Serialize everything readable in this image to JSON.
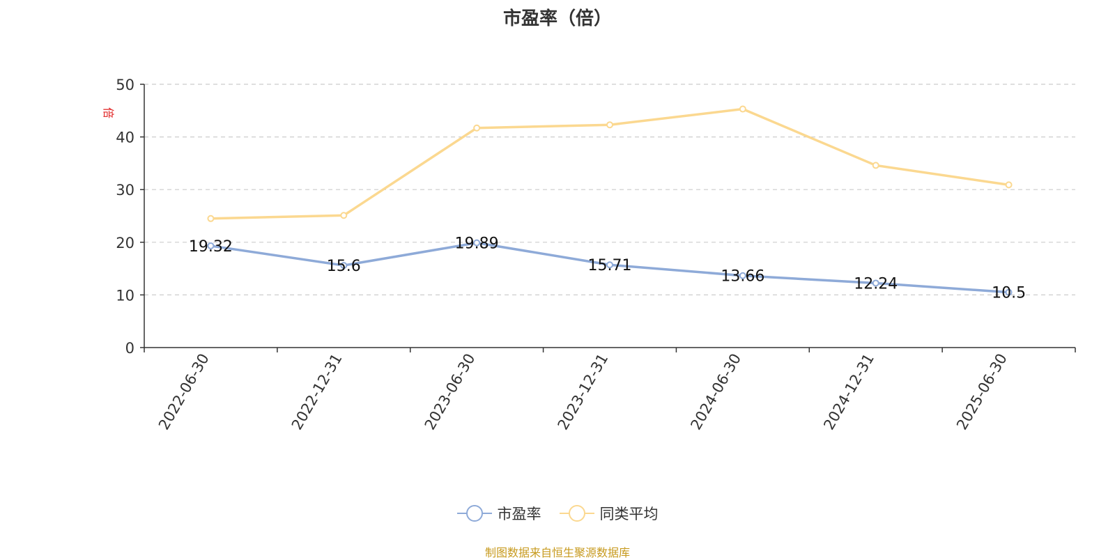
{
  "chart_data": {
    "type": "line",
    "title": "市盈率（倍）",
    "ylabel": "倍",
    "xlabel": "",
    "categories": [
      "2022-06-30",
      "2022-12-31",
      "2023-06-30",
      "2023-12-31",
      "2024-06-30",
      "2024-12-31",
      "2025-06-30"
    ],
    "ylim": [
      0,
      50
    ],
    "yticks": [
      0,
      10,
      20,
      30,
      40,
      50
    ],
    "grid": true,
    "legend_position": "bottom",
    "series": [
      {
        "name": "市盈率",
        "color": "#8eaad8",
        "values": [
          19.32,
          15.6,
          19.89,
          15.71,
          13.66,
          12.24,
          10.5
        ],
        "data_labels": [
          "19.32",
          "15.6",
          "19.89",
          "15.71",
          "13.66",
          "12.24",
          "10.5"
        ]
      },
      {
        "name": "同类平均",
        "color": "#fbd890",
        "values": [
          24.5,
          25.1,
          41.7,
          42.3,
          45.3,
          34.6,
          30.9
        ]
      }
    ]
  },
  "colors": {
    "axis_label_color": "#e02020"
  },
  "footer": {
    "source": "制图数据来自恒生聚源数据库"
  }
}
